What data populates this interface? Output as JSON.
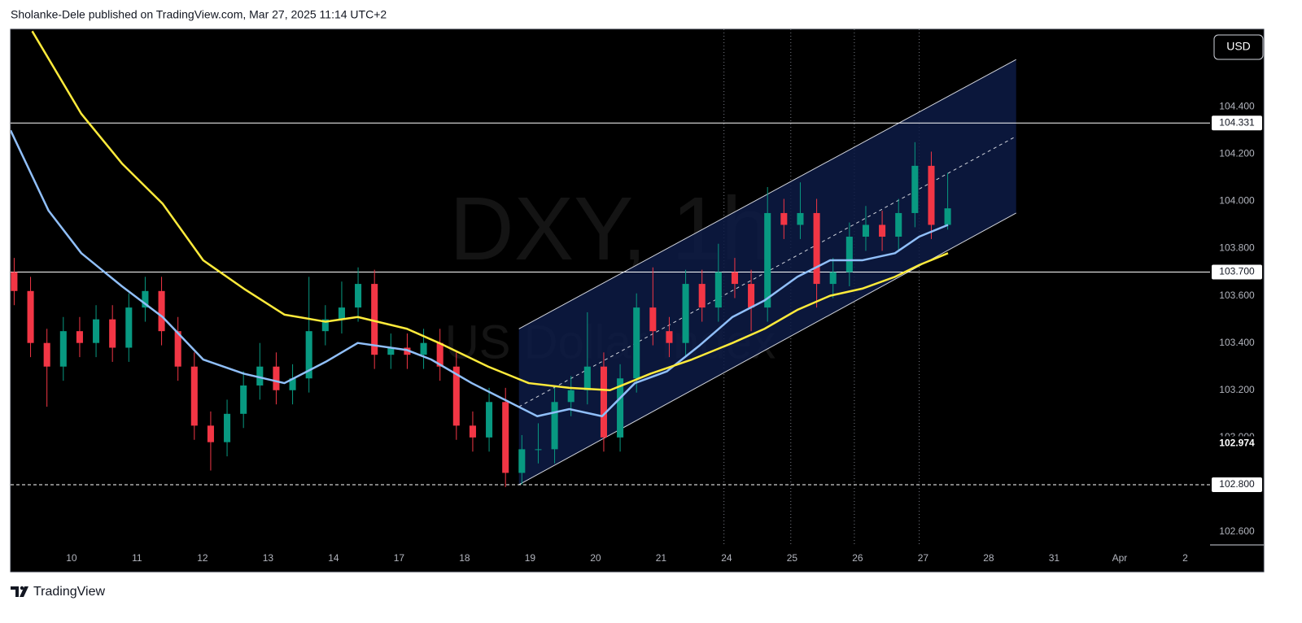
{
  "chart_data": {
    "type": "candlestick",
    "header": "Sholanke-Dele published on TradingView.com, Mar 27, 2025 11:14 UTC+2",
    "watermark": "DXY, 1h",
    "watermark_subtitle": "US Dollar Index",
    "currency": "USD",
    "brand": "TradingView",
    "xlim": [
      -0.93,
      17.38
    ],
    "xticks": [
      {
        "value": 0,
        "label": "10"
      },
      {
        "value": 1,
        "label": "11"
      },
      {
        "value": 2,
        "label": "12"
      },
      {
        "value": 3,
        "label": "13"
      },
      {
        "value": 4,
        "label": "14"
      },
      {
        "value": 5,
        "label": "17"
      },
      {
        "value": 6,
        "label": "18"
      },
      {
        "value": 7,
        "label": "19"
      },
      {
        "value": 8,
        "label": "20"
      },
      {
        "value": 9,
        "label": "21"
      },
      {
        "value": 10,
        "label": "24"
      },
      {
        "value": 11,
        "label": "25"
      },
      {
        "value": 12,
        "label": "26"
      },
      {
        "value": 13,
        "label": "27"
      },
      {
        "value": 14,
        "label": "28"
      },
      {
        "value": 15,
        "label": "31"
      },
      {
        "value": 16,
        "label": "Apr"
      },
      {
        "value": 17,
        "label": "2"
      }
    ],
    "ylim": [
      102.545,
      104.728
    ],
    "yticks": [
      {
        "value": 102.6,
        "label": "102.600"
      },
      {
        "value": 102.8,
        "label": "102.800"
      },
      {
        "value": 103.0,
        "label": "103.000"
      },
      {
        "value": 103.2,
        "label": "103.200"
      },
      {
        "value": 103.4,
        "label": "103.400"
      },
      {
        "value": 103.6,
        "label": "103.600"
      },
      {
        "value": 103.8,
        "label": "103.800"
      },
      {
        "value": 104.0,
        "label": "104.000"
      },
      {
        "value": 104.2,
        "label": "104.200"
      },
      {
        "value": 104.4,
        "label": "104.400"
      }
    ],
    "up_color": "#089981",
    "down_color": "#f23645",
    "candles": {
      "x": [
        -0.875,
        -0.625,
        -0.375,
        -0.125,
        0.125,
        0.375,
        0.625,
        0.875,
        1.125,
        1.375,
        1.625,
        1.875,
        2.125,
        2.375,
        2.625,
        2.875,
        3.125,
        3.375,
        3.625,
        3.875,
        4.125,
        4.375,
        4.625,
        4.875,
        5.125,
        5.375,
        5.625,
        5.875,
        6.125,
        6.375,
        6.625,
        6.875,
        7.125,
        7.375,
        7.625,
        7.875,
        8.125,
        8.375,
        8.625,
        8.875,
        9.125,
        9.375,
        9.625,
        9.875,
        10.125,
        10.375,
        10.625,
        10.875,
        11.125,
        11.375,
        11.625,
        11.875,
        12.125,
        12.375,
        12.625,
        12.875,
        13.125,
        13.375
      ],
      "open": [
        103.7,
        103.62,
        103.4,
        103.3,
        103.45,
        103.4,
        103.5,
        103.38,
        103.55,
        103.62,
        103.45,
        103.3,
        103.05,
        102.98,
        103.1,
        103.22,
        103.3,
        103.2,
        103.25,
        103.45,
        103.5,
        103.55,
        103.65,
        103.35,
        103.38,
        103.35,
        103.4,
        103.3,
        103.05,
        103.0,
        103.15,
        102.85,
        102.95,
        102.95,
        103.15,
        103.2,
        103.3,
        103.0,
        103.25,
        103.55,
        103.45,
        103.4,
        103.65,
        103.55,
        103.7,
        103.65,
        103.55,
        103.95,
        103.9,
        103.95,
        103.65,
        103.7,
        103.85,
        103.9,
        103.85,
        103.95,
        104.15,
        103.9
      ],
      "high": [
        103.76,
        103.68,
        103.46,
        103.51,
        103.51,
        103.56,
        103.56,
        103.61,
        103.68,
        103.68,
        103.51,
        103.36,
        103.11,
        103.16,
        103.28,
        103.4,
        103.36,
        103.31,
        103.68,
        103.56,
        103.66,
        103.72,
        103.71,
        103.44,
        103.44,
        103.46,
        103.46,
        103.36,
        103.11,
        103.21,
        103.21,
        103.01,
        103.06,
        103.21,
        103.26,
        103.53,
        103.36,
        103.31,
        103.61,
        103.72,
        103.51,
        103.71,
        103.71,
        103.82,
        103.76,
        103.71,
        104.06,
        104.01,
        104.08,
        104.01,
        103.76,
        103.91,
        103.98,
        103.96,
        104.01,
        104.25,
        104.21,
        104.12
      ],
      "low": [
        103.56,
        103.34,
        103.13,
        103.24,
        103.34,
        103.34,
        103.32,
        103.32,
        103.49,
        103.39,
        103.24,
        102.99,
        102.86,
        102.92,
        103.04,
        103.16,
        103.14,
        103.14,
        103.19,
        103.39,
        103.44,
        103.49,
        103.29,
        103.29,
        103.29,
        103.29,
        103.24,
        102.99,
        102.94,
        102.94,
        102.79,
        102.8,
        102.89,
        102.89,
        103.09,
        103.14,
        102.94,
        102.94,
        103.19,
        103.39,
        103.34,
        103.34,
        103.49,
        103.49,
        103.59,
        103.45,
        103.49,
        103.84,
        103.84,
        103.55,
        103.59,
        103.64,
        103.79,
        103.79,
        103.79,
        103.89,
        103.84,
        103.88
      ],
      "close": [
        103.62,
        103.4,
        103.3,
        103.45,
        103.4,
        103.5,
        103.38,
        103.55,
        103.62,
        103.45,
        103.3,
        103.05,
        102.98,
        103.1,
        103.22,
        103.3,
        103.2,
        103.25,
        103.45,
        103.5,
        103.55,
        103.65,
        103.35,
        103.38,
        103.35,
        103.4,
        103.3,
        103.05,
        103.0,
        103.15,
        102.85,
        102.95,
        102.95,
        103.15,
        103.2,
        103.3,
        103.0,
        103.25,
        103.55,
        103.45,
        103.4,
        103.65,
        103.55,
        103.7,
        103.65,
        103.55,
        103.95,
        103.9,
        103.95,
        103.65,
        103.7,
        103.85,
        103.9,
        103.85,
        103.95,
        104.15,
        103.9,
        103.97
      ]
    },
    "series": [
      {
        "color": "#90bff9",
        "x": [
          -0.93,
          -0.35,
          0.15,
          0.77,
          1.39,
          2.01,
          2.63,
          3.25,
          3.88,
          4.37,
          5.12,
          5.49,
          6.11,
          6.61,
          7.11,
          7.6,
          8.1,
          8.6,
          9.09,
          9.59,
          10.09,
          10.58,
          11.08,
          11.58,
          12.07,
          12.57,
          12.94,
          13.38
        ],
        "values": [
          104.3,
          103.96,
          103.78,
          103.64,
          103.51,
          103.33,
          103.27,
          103.23,
          103.32,
          103.4,
          103.37,
          103.33,
          103.23,
          103.16,
          103.09,
          103.12,
          103.09,
          103.23,
          103.28,
          103.39,
          103.51,
          103.58,
          103.68,
          103.75,
          103.75,
          103.78,
          103.85,
          103.9
        ]
      },
      {
        "color": "#ffeb3b",
        "x": [
          -0.6,
          0.15,
          0.77,
          1.39,
          2.01,
          2.63,
          3.25,
          3.88,
          4.37,
          5.12,
          5.61,
          6.36,
          6.98,
          7.6,
          8.22,
          8.84,
          9.47,
          10.09,
          10.58,
          11.08,
          11.58,
          12.07,
          12.57,
          12.94,
          13.38
        ],
        "values": [
          104.72,
          104.37,
          104.16,
          103.99,
          103.75,
          103.63,
          103.52,
          103.49,
          103.51,
          103.46,
          103.4,
          103.3,
          103.23,
          103.21,
          103.2,
          103.27,
          103.33,
          103.4,
          103.46,
          103.54,
          103.6,
          103.63,
          103.68,
          103.73,
          103.78
        ]
      }
    ],
    "channel": {
      "x": [
        6.83,
        14.42
      ],
      "lower": [
        102.8,
        103.95
      ],
      "upper": [
        103.46,
        104.6
      ],
      "color": "#0d1b45"
    },
    "levels": [
      {
        "price": 104.331,
        "style": "solid"
      },
      {
        "price": {
          "value": 103.7,
          "label": "103.700"
        },
        "style": "solid"
      },
      {
        "price": {
          "value": 102.8,
          "label": "102.800"
        },
        "style": "dashed"
      }
    ],
    "vlines": [
      9.96,
      10.98,
      11.95,
      12.94
    ],
    "last_price": 102.974
  }
}
